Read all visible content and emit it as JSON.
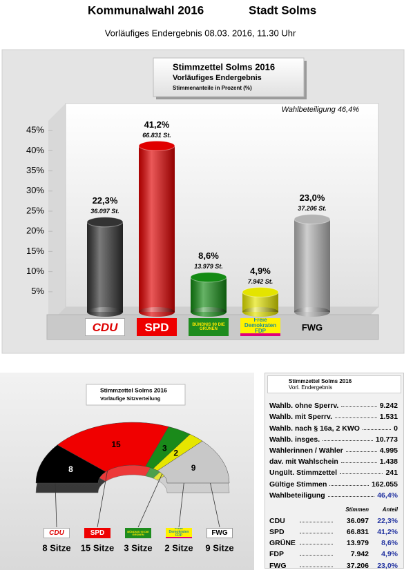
{
  "header": {
    "title": "Kommunalwahl 2016",
    "place": "Stadt Solms",
    "subtitle": "Vorläufiges Endergebnis 08.03. 2016, 11.30 Uhr"
  },
  "chart_data": [
    {
      "type": "bar",
      "title": "Stimmzettel Solms 2016",
      "subtitle": "Vorläufiges Endergebnis",
      "y_label": "Stimmenanteile in Prozent (%)",
      "annotation": "Wahlbeteiligung 46,4%",
      "categories": [
        "CDU",
        "SPD",
        "BÜNDNIS 90 DIE GRÜNEN",
        "Freie Demokraten FDP",
        "FWG"
      ],
      "values": [
        22.3,
        41.2,
        8.6,
        4.9,
        23.0
      ],
      "value_labels": [
        "22,3%",
        "41,2%",
        "8,6%",
        "4,9%",
        "23,0%"
      ],
      "vote_labels": [
        "36.097 St.",
        "66.831 St.",
        "13.979 St.",
        "7.942 St.",
        "37.206 St."
      ],
      "colors": [
        "#333333",
        "#e00000",
        "#138a13",
        "#e4e400",
        "#b4b4b4"
      ],
      "ylim": [
        0,
        50
      ],
      "yticks": [
        {
          "value": 5,
          "label": "5%"
        },
        {
          "value": 10,
          "label": "10%"
        },
        {
          "value": 15,
          "label": "15%"
        },
        {
          "value": 20,
          "label": "20%"
        },
        {
          "value": 25,
          "label": "25%"
        },
        {
          "value": 30,
          "label": "30%"
        },
        {
          "value": 35,
          "label": "35%"
        },
        {
          "value": 40,
          "label": "40%"
        },
        {
          "value": 45,
          "label": "45%"
        }
      ]
    },
    {
      "type": "arch",
      "title": "Stimmzettel Solms 2016",
      "subtitle": "Vorläufige Sitzverteilung",
      "categories": [
        "CDU",
        "SPD",
        "BÜNDNIS 90 DIE GRÜNEN",
        "Freie Demokraten FDP",
        "FWG"
      ],
      "values": [
        8,
        15,
        3,
        2,
        9
      ],
      "seat_labels": [
        "8 Sitze",
        "15 Sitze",
        "3 Sitze",
        "2 Sitze",
        "9 Sitze"
      ],
      "colors": [
        "#000000",
        "#f00000",
        "#1a8a1a",
        "#e6e600",
        "#c8c8c8"
      ]
    }
  ],
  "table": {
    "title": "Stimmzettel Solms 2016",
    "subtitle": "Vorl. Endergebnis",
    "rows": [
      [
        "Wahlb. ohne Sperrv.",
        "9.242"
      ],
      [
        "Wahlb. mit Sperrv.",
        "1.531"
      ],
      [
        "Wahlb. nach § 16a, 2 KWO",
        "0"
      ],
      [
        "Wahlb. insges.",
        "10.773"
      ],
      [
        "Wählerinnen / Wähler",
        "4.995"
      ],
      [
        "dav. mit Wahlschein",
        "1.438"
      ],
      [
        "Ungült. Stimmzettel",
        "241"
      ],
      [
        "Gültige Stimmen",
        "162.055"
      ],
      [
        "Wahlbeteiligung",
        "46,4%"
      ]
    ],
    "party_header": [
      "Stimmen",
      "Anteil"
    ],
    "party_rows": [
      [
        "CDU",
        "36.097",
        "22,3%"
      ],
      [
        "SPD",
        "66.831",
        "41,2%"
      ],
      [
        "GRÜNE",
        "13.979",
        "8,6%"
      ],
      [
        "FDP",
        "7.942",
        "4,9%"
      ],
      [
        "FWG",
        "37.206",
        "23,0%"
      ]
    ]
  }
}
